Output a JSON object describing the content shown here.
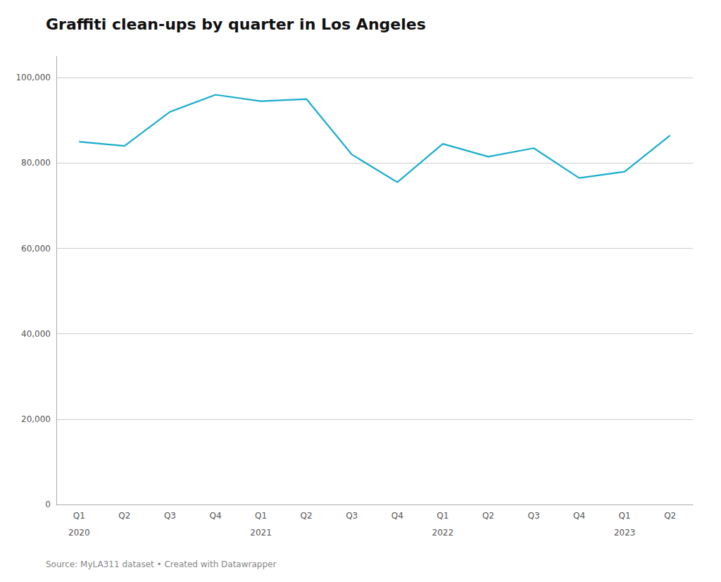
{
  "chart_data": {
    "type": "line",
    "title": "Graffiti clean-ups by quarter in Los Angeles",
    "source": "Source: MyLA311 dataset • Created with Datawrapper",
    "categories": [
      "Q1",
      "Q2",
      "Q3",
      "Q4",
      "Q1",
      "Q2",
      "Q3",
      "Q4",
      "Q1",
      "Q2",
      "Q3",
      "Q4",
      "Q1",
      "Q2"
    ],
    "year_labels": [
      "2020",
      null,
      null,
      null,
      "2021",
      null,
      null,
      null,
      "2022",
      null,
      null,
      null,
      "2023",
      null
    ],
    "values": [
      85000,
      84000,
      92000,
      96000,
      94500,
      95000,
      82000,
      75500,
      84500,
      81500,
      83500,
      76500,
      78000,
      86500
    ],
    "color": "#1aadce",
    "ylim": [
      0,
      105000
    ],
    "yticks": [
      0,
      {
        "value": 20000,
        "label": "20,000"
      },
      {
        "value": 40000,
        "label": "40,000"
      },
      {
        "value": 60000,
        "label": "60,000"
      },
      {
        "value": 80000,
        "label": "80,000"
      },
      {
        "value": 100000,
        "label": "100,000"
      }
    ],
    "grid": true
  }
}
